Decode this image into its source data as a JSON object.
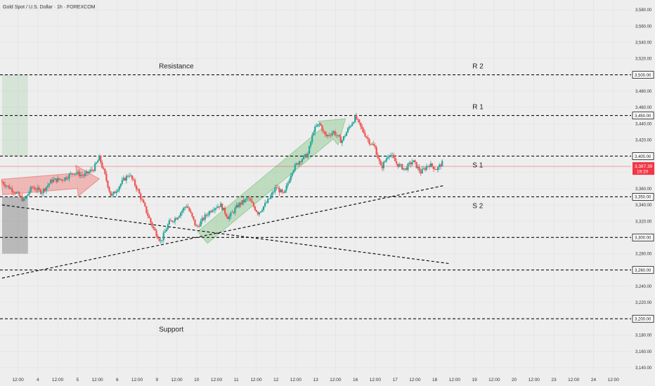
{
  "header": {
    "symbol_title": "Gold Spot / U.S. Dollar · 1h · FOREXCOM"
  },
  "colors": {
    "background": "#eeeeee",
    "up": "#26a69a",
    "down": "#ef5350",
    "text": "#333333",
    "price_tag": "#f23645"
  },
  "chart_data": {
    "type": "candlestick",
    "instrument": "Gold Spot / U.S. Dollar",
    "timeframe": "1h",
    "source": "FOREXCOM",
    "ylim": [
      3132,
      3592
    ],
    "y_ticks": [
      3140,
      3160,
      3180,
      3200,
      3220,
      3240,
      3260,
      3280,
      3300,
      3320,
      3340,
      3360,
      3380,
      3400,
      3420,
      3440,
      3460,
      3480,
      3500,
      3520,
      3540,
      3560,
      3580
    ],
    "y_tick_labels": [
      "3,140.00",
      "3,160.00",
      "3,180.00",
      "3,200.00",
      "3,220.00",
      "3,240.00",
      "3,260.00",
      "3,280.00",
      "3,300.00",
      "3,320.00",
      "3,340.00",
      "3,360.00",
      "3,380.00",
      "3,400.00",
      "3,420.00",
      "3,440.00",
      "3,460.00",
      "3,480.00",
      "3,500.00",
      "3,520.00",
      "3,540.00",
      "3,560.00",
      "3,580.00"
    ],
    "x_ticks": [
      {
        "label": "12:00",
        "x": 1
      },
      {
        "label": "4",
        "x": 2
      },
      {
        "label": "12:00",
        "x": 3
      },
      {
        "label": "5",
        "x": 4
      },
      {
        "label": "12:00",
        "x": 5
      },
      {
        "label": "6",
        "x": 6
      },
      {
        "label": "12:00",
        "x": 7
      },
      {
        "label": "9",
        "x": 8
      },
      {
        "label": "12:00",
        "x": 9
      },
      {
        "label": "10",
        "x": 10
      },
      {
        "label": "12:00",
        "x": 11
      },
      {
        "label": "11",
        "x": 12
      },
      {
        "label": "12:00",
        "x": 13
      },
      {
        "label": "12",
        "x": 14
      },
      {
        "label": "12:00",
        "x": 15
      },
      {
        "label": "13",
        "x": 16
      },
      {
        "label": "12:00",
        "x": 17
      },
      {
        "label": "16",
        "x": 18
      },
      {
        "label": "12:00",
        "x": 19
      },
      {
        "label": "17",
        "x": 20
      },
      {
        "label": "12:00",
        "x": 21
      },
      {
        "label": "18",
        "x": 22
      },
      {
        "label": "12:00",
        "x": 23
      },
      {
        "label": "19",
        "x": 24
      },
      {
        "label": "12:00",
        "x": 25
      },
      {
        "label": "20",
        "x": 26
      },
      {
        "label": "12:00",
        "x": 27
      },
      {
        "label": "23",
        "x": 28
      },
      {
        "label": "12:00",
        "x": 29
      },
      {
        "label": "24",
        "x": 30
      },
      {
        "label": "12:00",
        "x": 31
      }
    ],
    "xlim": [
      0.2,
      32
    ],
    "price_path": [
      [
        0.2,
        3368
      ],
      [
        0.9,
        3355
      ],
      [
        1.3,
        3345
      ],
      [
        1.7,
        3362
      ],
      [
        2.2,
        3356
      ],
      [
        2.7,
        3370
      ],
      [
        3.3,
        3372
      ],
      [
        3.8,
        3380
      ],
      [
        4.3,
        3376
      ],
      [
        4.8,
        3384
      ],
      [
        5.1,
        3398
      ],
      [
        5.4,
        3375
      ],
      [
        5.7,
        3350
      ],
      [
        6.3,
        3370
      ],
      [
        6.6,
        3378
      ],
      [
        7.0,
        3360
      ],
      [
        7.5,
        3330
      ],
      [
        7.8,
        3312
      ],
      [
        8.2,
        3295
      ],
      [
        8.6,
        3318
      ],
      [
        9.0,
        3325
      ],
      [
        9.5,
        3340
      ],
      [
        10.0,
        3312
      ],
      [
        10.4,
        3325
      ],
      [
        10.8,
        3336
      ],
      [
        11.2,
        3340
      ],
      [
        11.6,
        3324
      ],
      [
        12.1,
        3340
      ],
      [
        12.6,
        3348
      ],
      [
        13.1,
        3330
      ],
      [
        13.6,
        3345
      ],
      [
        14.0,
        3362
      ],
      [
        14.4,
        3352
      ],
      [
        14.8,
        3382
      ],
      [
        15.2,
        3395
      ],
      [
        15.6,
        3402
      ],
      [
        15.9,
        3432
      ],
      [
        16.2,
        3440
      ],
      [
        16.5,
        3424
      ],
      [
        16.9,
        3430
      ],
      [
        17.3,
        3418
      ],
      [
        17.7,
        3436
      ],
      [
        18.0,
        3448
      ],
      [
        18.3,
        3434
      ],
      [
        18.7,
        3418
      ],
      [
        19.0,
        3410
      ],
      [
        19.3,
        3385
      ],
      [
        19.7,
        3404
      ],
      [
        20.1,
        3390
      ],
      [
        20.5,
        3384
      ],
      [
        20.9,
        3394
      ],
      [
        21.3,
        3380
      ],
      [
        21.7,
        3390
      ],
      [
        22.1,
        3384
      ],
      [
        22.4,
        3392
      ]
    ],
    "current_price": 3387.39,
    "current_price_label": "3,387.39",
    "countdown": "19:20",
    "levels": [
      {
        "value": 3500,
        "label": "3,500.00"
      },
      {
        "value": 3450,
        "label": "3,450.00"
      },
      {
        "value": 3400,
        "label": "3,400.00"
      },
      {
        "value": 3350,
        "label": "3,350.00"
      },
      {
        "value": 3300,
        "label": "3,300.00"
      },
      {
        "value": 3260,
        "label": "3,260.00"
      },
      {
        "value": 3200,
        "label": "3,200.00"
      }
    ],
    "annotations": [
      {
        "text": "Resistance",
        "x": 8.1,
        "y": 3508
      },
      {
        "text": "R 2",
        "x": 23.9,
        "y": 3508
      },
      {
        "text": "R 1",
        "x": 23.9,
        "y": 3458
      },
      {
        "text": "S 1",
        "x": 23.9,
        "y": 3386
      },
      {
        "text": "S 2",
        "x": 23.9,
        "y": 3336
      },
      {
        "text": "Support",
        "x": 8.1,
        "y": 3184
      }
    ],
    "trendlines": [
      {
        "from": [
          0.2,
          3340
        ],
        "to": [
          22.7,
          3268
        ]
      },
      {
        "from": [
          0.2,
          3250
        ],
        "to": [
          22.5,
          3364
        ]
      }
    ],
    "arrows": [
      {
        "color": "red",
        "from": [
          0.2,
          3362
        ],
        "to": [
          5.1,
          3372
        ]
      },
      {
        "color": "green",
        "from": [
          10.3,
          3300
        ],
        "to": [
          17.5,
          3446
        ]
      }
    ],
    "boxes": [
      {
        "color": "green",
        "x0": 0.2,
        "x1": 1.5,
        "y0": 3400,
        "y1": 3500
      },
      {
        "color": "gray",
        "x0": 0.2,
        "x1": 1.5,
        "y0": 3280,
        "y1": 3350
      }
    ]
  }
}
